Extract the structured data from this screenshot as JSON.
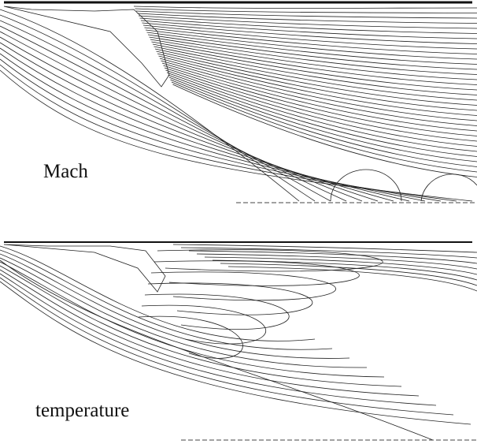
{
  "panels": [
    {
      "label": "Mach"
    },
    {
      "label": "temperature"
    }
  ]
}
